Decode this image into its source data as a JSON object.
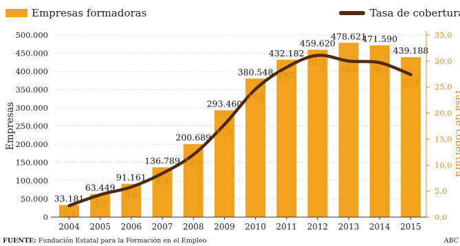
{
  "chart_data": {
    "type": "bar",
    "categories": [
      "2004",
      "2005",
      "2006",
      "2007",
      "2008",
      "2009",
      "2010",
      "2011",
      "2012",
      "2013",
      "2014",
      "2015"
    ],
    "series": [
      {
        "name": "Empresas formadoras",
        "type": "bar",
        "axis": "left",
        "values": [
          33181,
          63449,
          91161,
          136789,
          200689,
          293460,
          380548,
          432182,
          459620,
          478621,
          471590,
          439188
        ],
        "labels": [
          "33.181",
          "63.449",
          "91.161",
          "136.789",
          "200.689",
          "293.460",
          "380.548",
          "432.182",
          "459.620",
          "478.621",
          "471.590",
          "439.188"
        ]
      },
      {
        "name": "Tasa de cobertura",
        "type": "line",
        "axis": "right",
        "values": [
          2.2,
          4.3,
          5.8,
          8.4,
          12.0,
          17.8,
          24.6,
          28.8,
          31.1,
          30.0,
          29.7,
          27.4
        ],
        "labels": [
          "2,2",
          "4,3",
          "5,8",
          "8,4",
          "12,0",
          "17,8",
          "24,6",
          "28,8",
          "31,1",
          "30,0",
          "29,7",
          "27,4"
        ]
      }
    ],
    "ylabel": "Empresas",
    "y2label": "Tasa de cobertura",
    "ylim": [
      0,
      500000
    ],
    "y2lim": [
      0,
      35
    ],
    "yticks": [
      "0",
      "50.000",
      "100.000",
      "150.000",
      "200.000",
      "250.000",
      "300.000",
      "350.000",
      "400.000",
      "450.000",
      "500.000"
    ],
    "y2ticks": [
      "0,0",
      "5,0",
      "10,0",
      "15,0",
      "20,0",
      "25,0",
      "30,0",
      "35,0"
    ],
    "grid": true,
    "legend_position": "top"
  },
  "colors": {
    "bar": "#f0a21e",
    "line": "#4e2a12",
    "right_axis": "#e0881a",
    "grid": "#cfcfcf"
  },
  "footer": {
    "source_label": "FUENTE:",
    "source_text": "Fundación Estatal para la Formación en el Empleo",
    "credit": "ABC"
  }
}
